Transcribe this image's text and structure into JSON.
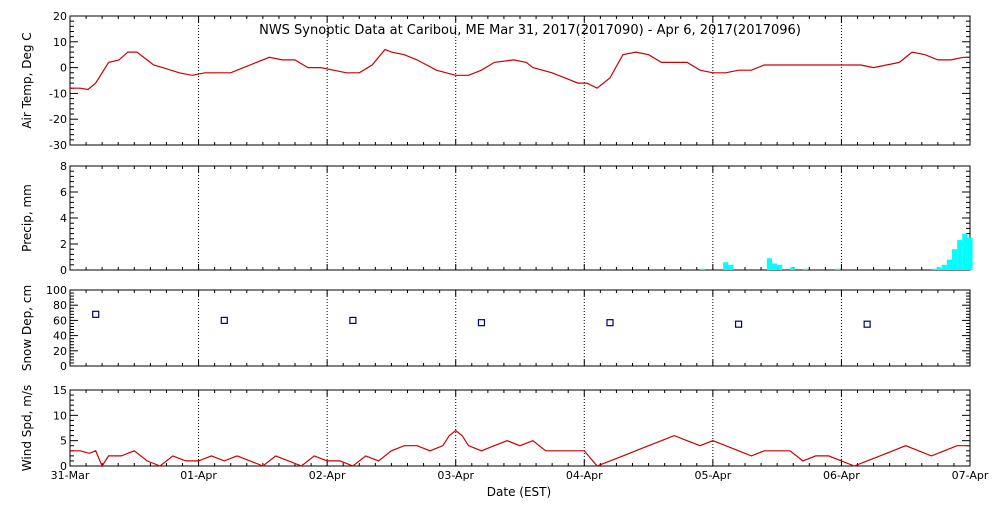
{
  "title": "NWS Synoptic Data at Caribou, ME   Mar 31, 2017(2017090) - Apr  6, 2017(2017096)",
  "xlabel": "Date (EST)",
  "x_tick_labels": [
    "31-Mar",
    "01-Apr",
    "02-Apr",
    "03-Apr",
    "04-Apr",
    "05-Apr",
    "06-Apr",
    "07-Apr"
  ],
  "colors": {
    "line": "#cc0000",
    "precip": "#00ffff",
    "snow": "#000080",
    "axis": "#000000"
  },
  "chart_data": [
    {
      "type": "line",
      "ylabel": "Air Temp, Deg C",
      "xlim": [
        0,
        7
      ],
      "ylim": [
        -30,
        20
      ],
      "y_ticks": [
        -30,
        -20,
        -10,
        0,
        10,
        20
      ],
      "grid": "vertical dotted at day boundaries",
      "x": [
        0,
        0.08,
        0.14,
        0.2,
        0.3,
        0.38,
        0.45,
        0.52,
        0.6,
        0.65,
        0.72,
        0.85,
        0.95,
        1.05,
        1.15,
        1.25,
        1.35,
        1.45,
        1.55,
        1.65,
        1.75,
        1.85,
        1.95,
        2.05,
        2.15,
        2.25,
        2.35,
        2.45,
        2.5,
        2.6,
        2.7,
        2.85,
        3.0,
        3.1,
        3.2,
        3.3,
        3.45,
        3.55,
        3.6,
        3.75,
        3.85,
        3.95,
        4.02,
        4.1,
        4.2,
        4.3,
        4.4,
        4.5,
        4.6,
        4.7,
        4.8,
        4.9,
        5.0,
        5.1,
        5.2,
        5.3,
        5.4,
        5.5,
        5.6,
        5.75,
        5.9,
        6.05,
        6.15,
        6.25,
        6.35,
        6.45,
        6.55,
        6.65,
        6.75,
        6.85,
        6.95,
        7.0
      ],
      "series": [
        {
          "values": [
            -8,
            -8,
            -8.5,
            -6,
            2,
            3,
            6,
            6,
            3,
            1,
            0,
            -2,
            -3,
            -2,
            -2,
            -2,
            0,
            2,
            4,
            3,
            3,
            0,
            0,
            -1,
            -2,
            -2,
            1,
            7,
            6,
            5,
            3,
            -1,
            -3,
            -3,
            -1,
            2,
            3,
            2,
            0,
            -2,
            -4,
            -6,
            -6,
            -8,
            -4,
            5,
            6,
            5,
            2,
            2,
            2,
            -1,
            -2,
            -2,
            -1,
            -1,
            1,
            1,
            1,
            1,
            1,
            1,
            1,
            0,
            1,
            2,
            6,
            5,
            3,
            3,
            4,
            4
          ]
        }
      ]
    },
    {
      "type": "bar",
      "ylabel": "Precip, mm",
      "xlim": [
        0,
        7
      ],
      "ylim": [
        0,
        8
      ],
      "y_ticks": [
        0,
        2,
        4,
        6,
        8
      ],
      "bar_width_days": 0.04,
      "x": [
        4.9,
        5.08,
        5.12,
        5.42,
        5.46,
        5.5,
        5.6,
        5.7,
        5.95,
        6.7,
        6.74,
        6.78,
        6.82,
        6.86,
        6.9,
        6.94,
        6.98
      ],
      "series": [
        {
          "values": [
            0.1,
            0.6,
            0.4,
            0.9,
            0.5,
            0.4,
            0.2,
            0.1,
            0.1,
            0.1,
            0.2,
            0.4,
            0.8,
            1.6,
            2.3,
            2.8,
            2.5
          ]
        }
      ]
    },
    {
      "type": "scatter",
      "ylabel": "Snow Dep, cm",
      "xlim": [
        0,
        7
      ],
      "ylim": [
        0,
        100
      ],
      "y_ticks": [
        0,
        20,
        40,
        60,
        80,
        100
      ],
      "x": [
        0.2,
        1.2,
        2.2,
        3.2,
        4.2,
        5.2,
        6.2
      ],
      "series": [
        {
          "values": [
            68,
            60,
            60,
            57,
            57,
            55,
            55
          ]
        }
      ]
    },
    {
      "type": "line",
      "ylabel": "Wind Spd, m/s",
      "xlim": [
        0,
        7
      ],
      "ylim": [
        0,
        15
      ],
      "y_ticks": [
        0,
        5,
        10,
        15
      ],
      "x": [
        0,
        0.08,
        0.15,
        0.2,
        0.25,
        0.3,
        0.4,
        0.5,
        0.6,
        0.7,
        0.8,
        0.9,
        1.0,
        1.1,
        1.2,
        1.3,
        1.4,
        1.5,
        1.6,
        1.7,
        1.8,
        1.9,
        2.0,
        2.1,
        2.2,
        2.3,
        2.4,
        2.5,
        2.6,
        2.7,
        2.8,
        2.9,
        2.95,
        3.0,
        3.05,
        3.1,
        3.2,
        3.3,
        3.4,
        3.5,
        3.6,
        3.7,
        3.8,
        3.9,
        4.0,
        4.1,
        4.2,
        4.3,
        4.4,
        4.5,
        4.6,
        4.7,
        4.8,
        4.9,
        5.0,
        5.1,
        5.2,
        5.3,
        5.4,
        5.5,
        5.6,
        5.7,
        5.8,
        5.9,
        6.0,
        6.1,
        6.2,
        6.3,
        6.4,
        6.5,
        6.6,
        6.7,
        6.8,
        6.9,
        7.0
      ],
      "series": [
        {
          "values": [
            3,
            3,
            2.5,
            3,
            0,
            2,
            2,
            3,
            1,
            0,
            2,
            1,
            1,
            2,
            1,
            2,
            1,
            0,
            2,
            1,
            0,
            2,
            1,
            1,
            0,
            2,
            1,
            3,
            4,
            4,
            3,
            4,
            6,
            7,
            6,
            4,
            3,
            4,
            5,
            4,
            5,
            3,
            3,
            3,
            3,
            0,
            1,
            2,
            3,
            4,
            5,
            6,
            5,
            4,
            5,
            4,
            3,
            2,
            3,
            3,
            3,
            1,
            2,
            2,
            1,
            0,
            1,
            2,
            3,
            4,
            3,
            2,
            3,
            4,
            4
          ]
        }
      ]
    }
  ]
}
